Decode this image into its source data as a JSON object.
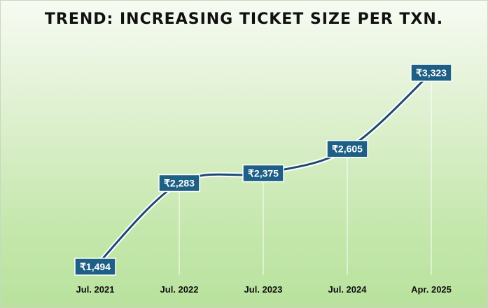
{
  "chart_data": {
    "type": "line",
    "title": "TREND: INCREASING TICKET SIZE PER TXN.",
    "categories": [
      "Jul. 2021",
      "Jul. 2022",
      "Jul. 2023",
      "Jul. 2024",
      "Apr. 2025"
    ],
    "values": [
      1494,
      2283,
      2375,
      2605,
      3323
    ],
    "data_labels": [
      "₹1,494",
      "₹2,283",
      "₹2,375",
      "₹2,605",
      "₹3,323"
    ],
    "ylim": [
      1300,
      3400
    ],
    "grid": false,
    "legend": "none",
    "colors": {
      "line": "#1a4b70",
      "label_bg": "#1e5f86",
      "drop_line": "#ffffff"
    }
  }
}
